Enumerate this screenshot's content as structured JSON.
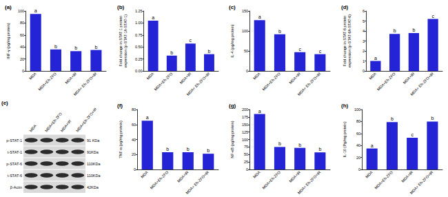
{
  "chart_data": [
    {
      "type": "bar",
      "title": "(a)",
      "ylabel": "INF-γ (pg/mg protein)",
      "categories": [
        "MDA",
        "MDA+Eh-ZFO",
        "MDA+IR",
        "MDA+ Eh-ZFO+IR"
      ],
      "values": [
        95,
        36,
        33,
        35
      ],
      "annotations": [
        "a",
        "b",
        "b",
        "b"
      ],
      "color": "#2424d6",
      "ylim": [
        0,
        100
      ],
      "yticks": [
        0,
        20,
        40,
        60,
        80,
        100
      ],
      "grid": false
    },
    {
      "type": "bar",
      "title": "(b)",
      "ylabel": "Fold change in STAT-1 protein expression (p-STAT-1/t-STAT-1)",
      "categories": [
        "MDA",
        "MDA+Eh-ZFO",
        "MDA+IR",
        "MDA+ Eh-ZFO+IR"
      ],
      "values": [
        1.05,
        0.32,
        0.57,
        0.35
      ],
      "annotations": [
        "a",
        "b",
        "c",
        "b"
      ],
      "color": "#2424d6",
      "ylim": [
        0,
        1.25
      ],
      "yticks": [
        {
          "value": 0,
          "label": "0.00"
        },
        {
          "value": 0.25,
          "label": "0.25"
        },
        {
          "value": 0.5,
          "label": "0.50"
        },
        {
          "value": 0.75,
          "label": "0.75"
        },
        {
          "value": 1,
          "label": "1.00"
        },
        {
          "value": 1.25,
          "label": "1.25"
        }
      ],
      "grid": false
    },
    {
      "type": "bar",
      "title": "(c)",
      "ylabel": "IL-4 (pg/mg protein)",
      "categories": [
        "MDA",
        "MDA+Eh-ZFO",
        "MDA+IR",
        "MDA+ Eh-ZFO+IR"
      ],
      "values": [
        127,
        92,
        47,
        42
      ],
      "annotations": [
        "a",
        "b",
        "c",
        "c"
      ],
      "color": "#2424d6",
      "ylim": [
        0,
        150
      ],
      "yticks": [
        0,
        50,
        100,
        150
      ],
      "grid": false
    },
    {
      "type": "bar",
      "title": "(d)",
      "ylabel": "Fold change in STAT-6 protein expression (p-STAT-6/t-STAT-6)",
      "categories": [
        "MDA",
        "MDA+Eh-ZFO",
        "MDA+IR",
        "MDA+ Eh-ZFO+IR"
      ],
      "values": [
        1,
        3.7,
        3.8,
        5.2
      ],
      "annotations": [
        "a",
        "b",
        "b",
        "c"
      ],
      "color": "#2424d6",
      "ylim": [
        0,
        6
      ],
      "yticks": [
        0,
        1,
        2,
        3,
        4,
        5,
        6
      ],
      "grid": false
    },
    {
      "type": "bar",
      "title": "(f)",
      "ylabel": "TNF-α (pg/mg protein)",
      "categories": [
        "MDA",
        "MDA+Eh-ZFO",
        "MDA+IR",
        "MDA+ Eh-ZFO+IR"
      ],
      "values": [
        65,
        23,
        23,
        21
      ],
      "annotations": [
        "a",
        "b",
        "b",
        "b"
      ],
      "color": "#2424d6",
      "ylim": [
        0,
        80
      ],
      "yticks": [
        0,
        20,
        40,
        60,
        80
      ],
      "grid": false
    },
    {
      "type": "bar",
      "title": "(g)",
      "ylabel": "NF-κB (pg/mg protein)",
      "categories": [
        "MDA",
        "MDA+Eh-ZFO",
        "MDA+IR",
        "MDA+ Eh-ZFO+IR"
      ],
      "values": [
        185,
        75,
        72,
        57
      ],
      "annotations": [
        "a",
        "b",
        "b",
        "b"
      ],
      "color": "#2424d6",
      "ylim": [
        0,
        200
      ],
      "yticks": [
        0,
        25,
        50,
        75,
        100,
        125,
        150,
        175,
        200
      ],
      "grid": false
    },
    {
      "type": "bar",
      "title": "(h)",
      "ylabel": "IL-10 (Pg/mg protein)",
      "categories": [
        "MDA",
        "MDA+Eh-ZFO",
        "MDA+IR",
        "MDA+ Eh-ZFO+IR"
      ],
      "values": [
        35,
        79,
        53,
        80
      ],
      "annotations": [
        "a",
        "b",
        "c",
        "b"
      ],
      "color": "#2424d6",
      "ylim": [
        0,
        100
      ],
      "yticks": [
        0,
        20,
        40,
        60,
        80,
        100
      ],
      "grid": false
    }
  ],
  "blot": {
    "title": "(e)",
    "columns": [
      "MDA",
      "MDA+Eh-ZFO",
      "MDA+IR",
      "MDA+Eh-ZFO+IR"
    ],
    "rows": [
      {
        "label": "p-STAT-1",
        "size": "91 KDa"
      },
      {
        "label": "t-STAT-1",
        "size": "91KDa"
      },
      {
        "label": "p-STAT-6",
        "size": "110KDa"
      },
      {
        "label": "t-STAT-6",
        "size": "110KDa"
      },
      {
        "label": "β-Actin",
        "size": "42KDa"
      }
    ]
  }
}
